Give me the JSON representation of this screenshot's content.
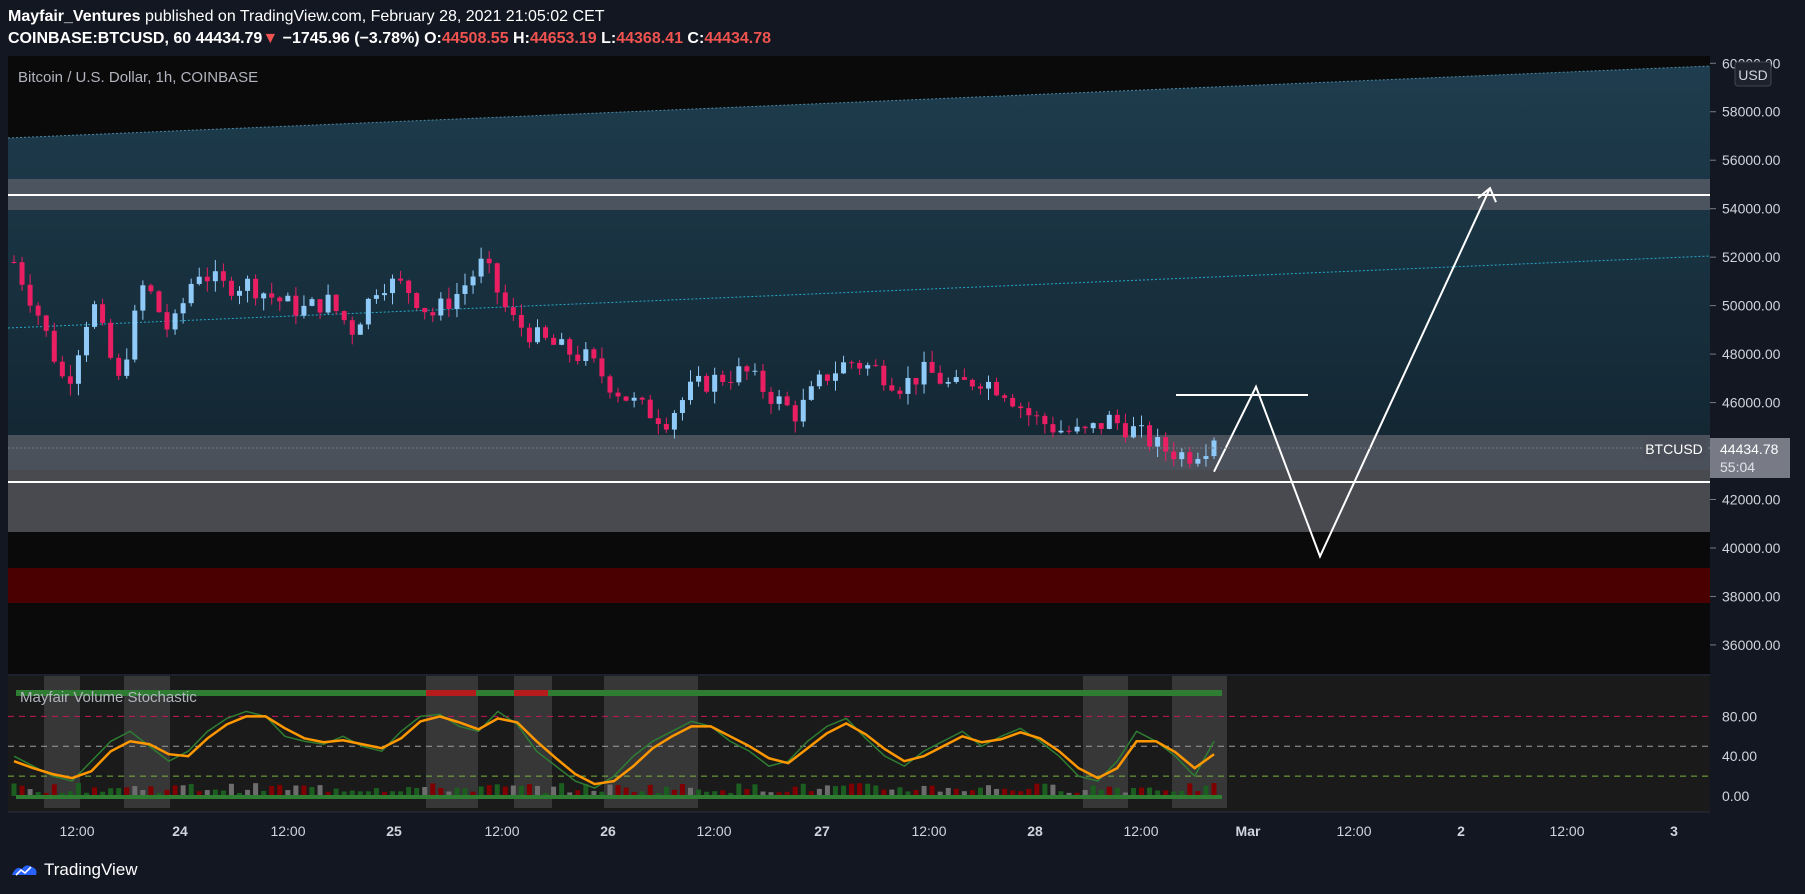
{
  "header": {
    "author": "Mayfair_Ventures",
    "published_text": "published on TradingView.com, February 28, 2021 21:05:02 CET",
    "symbol": "COINBASE:BTCUSD, 60",
    "last": "44434.79",
    "change_arrow": "▼",
    "change": "−1745.96 (−3.78%)",
    "o_label": "O:",
    "o_value": "44508.55",
    "h_label": "H:",
    "h_value": "44653.19",
    "l_label": "L:",
    "l_value": "44368.41",
    "c_label": "C:",
    "c_value": "44434.78"
  },
  "chart_title": "Bitcoin / U.S. Dollar, 1h, COINBASE",
  "indicator_title": "Mayfair Volume Stochastic",
  "currency_badge": "USD",
  "price_badge": {
    "symbol": "BTCUSD",
    "price": "44434.78",
    "countdown": "55:04"
  },
  "footer": {
    "brand": "TradingView"
  },
  "colors": {
    "background": "#131722",
    "up": "#90caf9",
    "down": "#e91e63",
    "channel": "#1b3a4b",
    "zone": "#787b86",
    "red_zone": "#4a0000",
    "k_line": "#2e7d32",
    "d_line": "#ff9800"
  },
  "chart_data": [
    {
      "type": "candlestick",
      "title": "Bitcoin / U.S. Dollar, 1h, COINBASE",
      "y_axis": {
        "ticks": [
          60000,
          58000,
          56000,
          54000,
          52000,
          50000,
          48000,
          46000,
          44000,
          42000,
          40000,
          38000,
          36000
        ],
        "tick_labels": [
          "60000.00",
          "58000.00",
          "56000.00",
          "54000.00",
          "52000.00",
          "50000.00",
          "48000.00",
          "46000.00",
          "44000.00",
          "42000.00",
          "40000.00",
          "38000.00",
          "36000.00"
        ],
        "range": [
          34800,
          60300
        ]
      },
      "x_axis": {
        "tick_labels": [
          "12:00",
          "24",
          "12:00",
          "25",
          "12:00",
          "26",
          "12:00",
          "27",
          "12:00",
          "28",
          "12:00",
          "Mar",
          "12:00",
          "2",
          "12:00",
          "3"
        ],
        "bold": [
          "24",
          "25",
          "26",
          "27",
          "28",
          "Mar",
          "2",
          "3"
        ]
      },
      "price_path": [
        51800,
        49500,
        46600,
        50200,
        46800,
        51000,
        48800,
        51500,
        50800,
        50900,
        50300,
        49800,
        50200,
        49000,
        51000,
        50800,
        49600,
        50500,
        51800,
        49500,
        48700,
        48200,
        47800,
        46600,
        45800,
        45300,
        46600,
        47000,
        47300,
        46300,
        45500,
        47000,
        47700,
        47400,
        46700,
        47300,
        46600,
        47000,
        46500,
        45400,
        44900,
        44700,
        45300,
        44800,
        44100,
        43800,
        44434
      ],
      "last_price": 44434.78,
      "levels": [
        {
          "name": "upper_line",
          "value": 54850
        },
        {
          "name": "upper_zone",
          "from": 54250,
          "to": 55550
        },
        {
          "name": "lower_line",
          "value": 42950
        },
        {
          "name": "support_zone",
          "from": 41000,
          "to": 45050
        },
        {
          "name": "red_zone",
          "from": 38050,
          "to": 39550
        }
      ],
      "projection": [
        {
          "t": 0,
          "price": 43150
        },
        {
          "t": 1,
          "price": 46650
        },
        {
          "t": 2,
          "price": 39650
        },
        {
          "t": 3,
          "price": 54850
        }
      ]
    },
    {
      "type": "line",
      "title": "Mayfair Volume Stochastic",
      "y_axis": {
        "ticks": [
          80,
          40,
          0
        ],
        "tick_labels": [
          "80.00",
          "40.00",
          "0.00"
        ],
        "levels": [
          80,
          50,
          20
        ]
      },
      "series": [
        {
          "values": [
            40,
            30,
            20,
            15,
            35,
            55,
            65,
            50,
            35,
            45,
            65,
            78,
            85,
            80,
            60,
            55,
            52,
            60,
            50,
            45,
            65,
            80,
            82,
            70,
            65,
            85,
            72,
            45,
            30,
            15,
            8,
            20,
            40,
            55,
            65,
            75,
            70,
            55,
            45,
            30,
            35,
            55,
            70,
            78,
            58,
            40,
            30,
            45,
            55,
            65,
            50,
            60,
            68,
            55,
            40,
            20,
            15,
            35,
            65,
            55,
            40,
            20,
            55
          ]
        },
        {
          "values": [
            35,
            28,
            22,
            18,
            25,
            45,
            55,
            52,
            42,
            40,
            58,
            72,
            80,
            80,
            68,
            58,
            54,
            56,
            52,
            48,
            58,
            75,
            80,
            74,
            67,
            78,
            74,
            55,
            38,
            22,
            12,
            15,
            30,
            48,
            60,
            70,
            70,
            60,
            50,
            38,
            33,
            48,
            63,
            73,
            62,
            47,
            35,
            40,
            50,
            60,
            54,
            57,
            64,
            58,
            45,
            28,
            18,
            28,
            55,
            55,
            44,
            28,
            42
          ]
        }
      ]
    }
  ]
}
